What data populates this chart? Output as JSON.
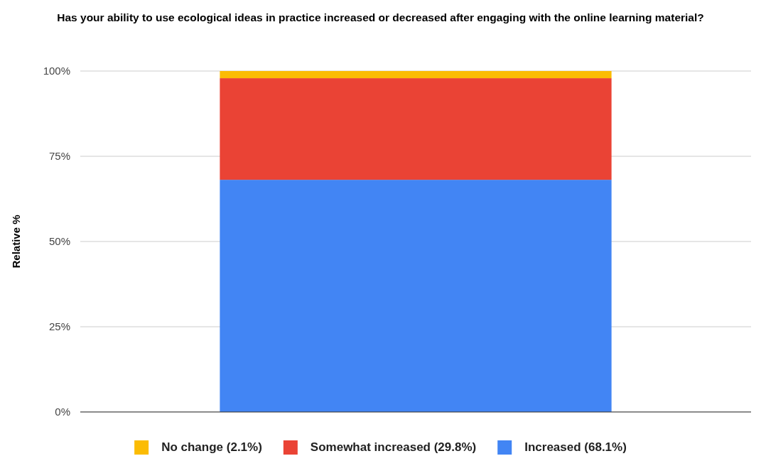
{
  "chart_data": {
    "type": "bar",
    "stacked": true,
    "title": "Has your ability to use ecological ideas in practice increased or decreased after engaging with the online learning material?",
    "ylabel": "Relative %",
    "categories": [
      null
    ],
    "series": [
      {
        "name": "Increased (68.1%)",
        "color": "#4285f4",
        "values": [
          68.1
        ]
      },
      {
        "name": "Somewhat increased (29.8%)",
        "color": "#ea4335",
        "values": [
          29.8
        ]
      },
      {
        "name": "No change (2.1%)",
        "color": "#fbbc04",
        "values": [
          2.1
        ]
      }
    ],
    "ylim": [
      0,
      100
    ],
    "yticks": [
      {
        "value": 0,
        "label": "0%"
      },
      {
        "value": 25,
        "label": "25%"
      },
      {
        "value": 50,
        "label": "50%"
      },
      {
        "value": 75,
        "label": "75%"
      },
      {
        "value": 100,
        "label": "100%"
      }
    ],
    "grid": "y",
    "legend": "bottom"
  }
}
